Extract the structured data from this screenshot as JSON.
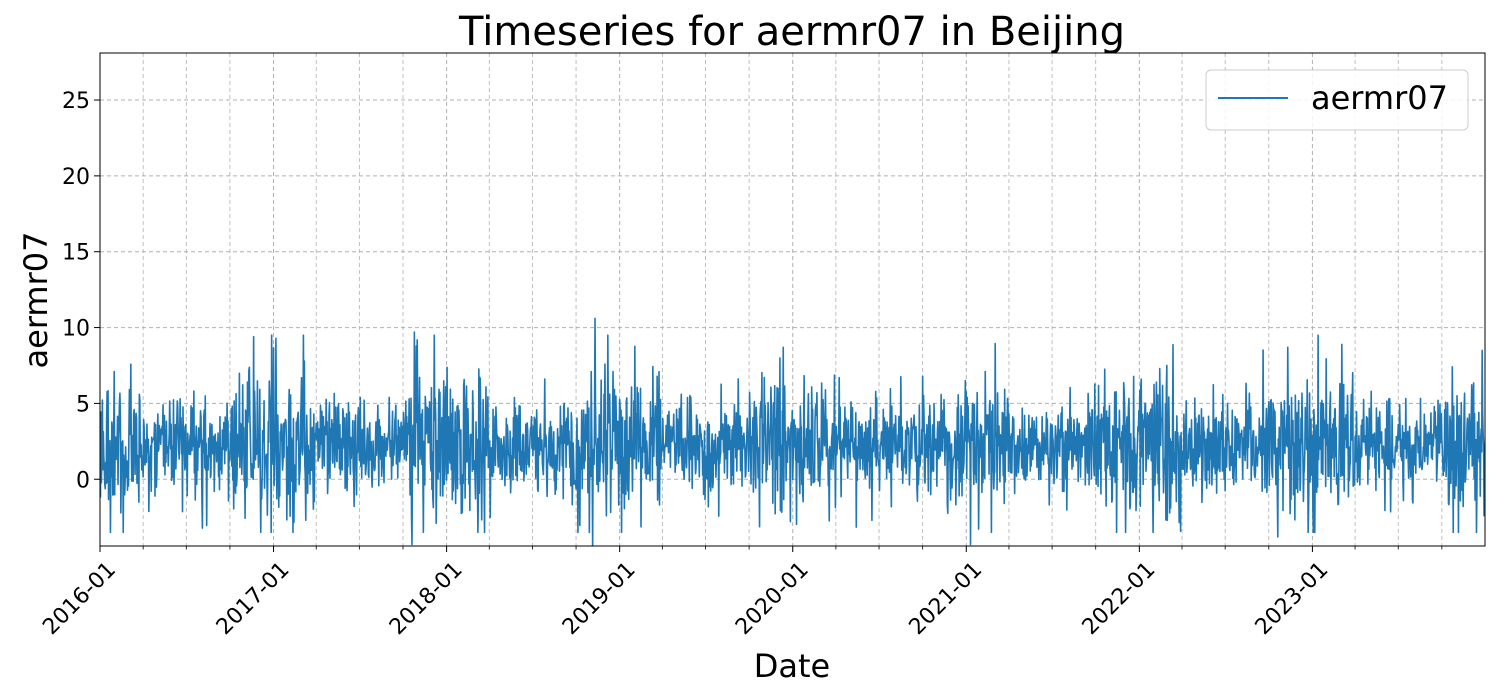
{
  "chart_data": {
    "type": "line",
    "title": "Timeseries for aermr07 in Beijing",
    "xlabel": "Date",
    "ylabel": "aermr07",
    "xlim": [
      "2016-01-01",
      "2023-12-31"
    ],
    "ylim": [
      -4.4,
      28.1
    ],
    "x_ticks": [
      "2016-01",
      "2017-01",
      "2018-01",
      "2019-01",
      "2020-01",
      "2021-01",
      "2022-01",
      "2023-01"
    ],
    "y_ticks": [
      0,
      5,
      10,
      15,
      20,
      25
    ],
    "grid": true,
    "legend": {
      "position": "top-right",
      "entries": [
        "aermr07"
      ]
    },
    "series": [
      {
        "name": "aermr07",
        "color": "#1f77b4",
        "x_start": "2016-01-01",
        "x_end": "2023-12-31",
        "frequency": "daily",
        "baseline_mean": 2.2,
        "typical_range": [
          -3.5,
          9.5
        ],
        "min": -4.4,
        "max": 10.6,
        "peaks": [
          {
            "date": "2016-11-20",
            "value": 9.4
          },
          {
            "date": "2017-10-25",
            "value": 9.7
          },
          {
            "date": "2018-11-10",
            "value": 10.6
          },
          {
            "date": "2019-12-05",
            "value": 8.0
          },
          {
            "date": "2021-02-10",
            "value": 7.1
          },
          {
            "date": "2022-11-10",
            "value": 8.7
          },
          {
            "date": "2023-12-25",
            "value": 8.5
          }
        ],
        "troughs": [
          {
            "date": "2017-10-20",
            "value": -4.3
          },
          {
            "date": "2018-11-05",
            "value": -4.4
          },
          {
            "date": "2021-01-10",
            "value": -4.3
          },
          {
            "date": "2022-10-20",
            "value": -3.8
          }
        ]
      }
    ]
  }
}
